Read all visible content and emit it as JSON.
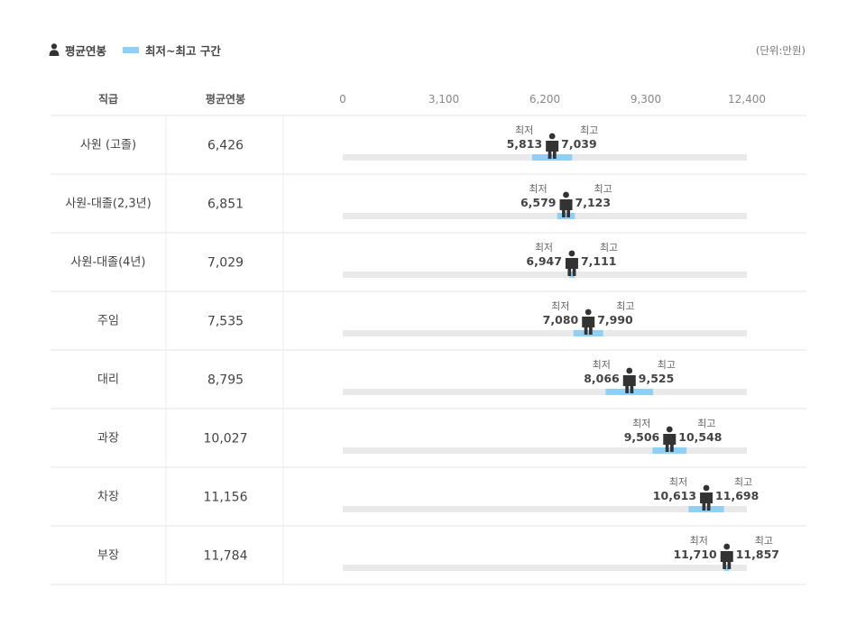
{
  "legend": {
    "avg_label": "평균연봉",
    "range_label": "최저~최고 구간",
    "avg_icon": "person-icon",
    "range_color": "#8fd0f7"
  },
  "unit_label": "(단위:만원)",
  "chart_data": {
    "type": "range-bar",
    "columns": {
      "position": "직급",
      "avg": "평균연봉"
    },
    "axis": {
      "ticks": [
        0,
        3100,
        6200,
        9300,
        12400
      ],
      "tick_labels": [
        "0",
        "3,100",
        "6,200",
        "9,300",
        "12,400"
      ],
      "range": [
        0,
        12400
      ]
    },
    "min_caption": "최저",
    "max_caption": "최고",
    "track_color": "#e9e9e9",
    "range_color": "#8fd0f7",
    "marker_color": "#333333",
    "rows": [
      {
        "position": "사원 (고졸)",
        "avg": 6426,
        "avg_label": "6,426",
        "min": 5813,
        "min_label": "5,813",
        "max": 7039,
        "max_label": "7,039"
      },
      {
        "position": "사원-대졸(2,3년)",
        "avg": 6851,
        "avg_label": "6,851",
        "min": 6579,
        "min_label": "6,579",
        "max": 7123,
        "max_label": "7,123"
      },
      {
        "position": "사원-대졸(4년)",
        "avg": 7029,
        "avg_label": "7,029",
        "min": 6947,
        "min_label": "6,947",
        "max": 7111,
        "max_label": "7,111"
      },
      {
        "position": "주임",
        "avg": 7535,
        "avg_label": "7,535",
        "min": 7080,
        "min_label": "7,080",
        "max": 7990,
        "max_label": "7,990"
      },
      {
        "position": "대리",
        "avg": 8795,
        "avg_label": "8,795",
        "min": 8066,
        "min_label": "8,066",
        "max": 9525,
        "max_label": "9,525"
      },
      {
        "position": "과장",
        "avg": 10027,
        "avg_label": "10,027",
        "min": 9506,
        "min_label": "9,506",
        "max": 10548,
        "max_label": "10,548"
      },
      {
        "position": "차장",
        "avg": 11156,
        "avg_label": "11,156",
        "min": 10613,
        "min_label": "10,613",
        "max": 11698,
        "max_label": "11,698"
      },
      {
        "position": "부장",
        "avg": 11784,
        "avg_label": "11,784",
        "min": 11710,
        "min_label": "11,710",
        "max": 11857,
        "max_label": "11,857"
      }
    ]
  }
}
